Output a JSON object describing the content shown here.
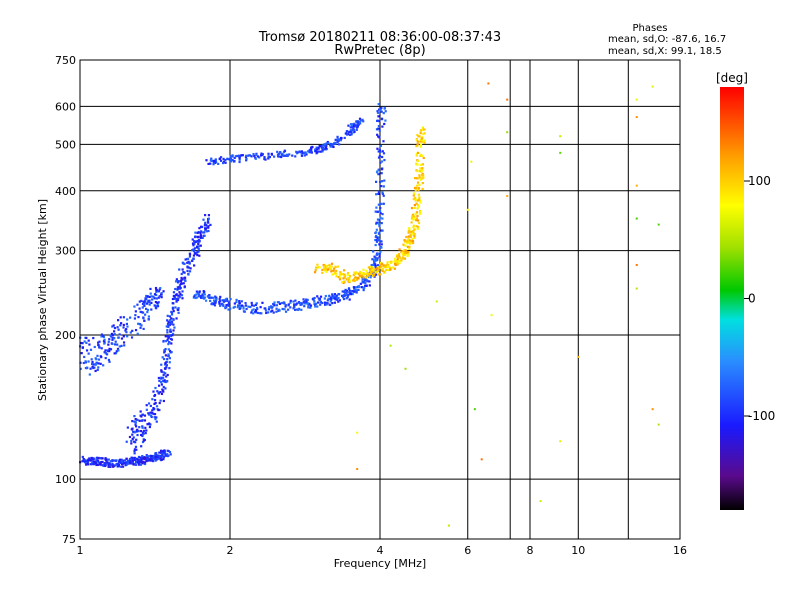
{
  "chart_data": {
    "type": "scatter",
    "title": "Tromsø 20180211 08:36:00-08:37:43",
    "subtitle": "RwPretec (8p)",
    "xlabel": "Frequency [MHz]",
    "ylabel": "Stationary phase Virtual Height [km]",
    "x_scale": "log",
    "y_scale": "log",
    "xlim": [
      1,
      16
    ],
    "ylim": [
      75,
      750
    ],
    "x_ticks": [
      1,
      2,
      4,
      6,
      8,
      10,
      16
    ],
    "x_tick_labels": [
      "1",
      "2",
      "4",
      "6",
      "8",
      "10",
      "16"
    ],
    "x_grid": [
      2,
      4,
      6,
      7.3,
      8,
      10,
      12.6
    ],
    "y_ticks": [
      75,
      100,
      200,
      300,
      400,
      500,
      600,
      750
    ],
    "y_tick_labels": [
      "75",
      "100",
      "200",
      "300",
      "400",
      "500",
      "600",
      "750"
    ],
    "y_grid": [
      100,
      200,
      300,
      400,
      500,
      600
    ],
    "grid": true,
    "phases_box": {
      "heading": "Phases",
      "line_o": "mean, sd,O: -87.6, 16.7",
      "line_x": "mean, sd,X:  99.1, 18.5"
    },
    "colorbar": {
      "label": "[deg]",
      "range": [
        -180,
        180
      ],
      "ticks": [
        100,
        0,
        -100
      ],
      "tick_labels": [
        "100",
        "0",
        "-100"
      ]
    },
    "series": [
      {
        "trace": "E-layer",
        "phase_deg": -100,
        "spread_km": 2,
        "points": [
          [
            1.0,
            110
          ],
          [
            1.05,
            109
          ],
          [
            1.1,
            109
          ],
          [
            1.15,
            108
          ],
          [
            1.2,
            108
          ],
          [
            1.25,
            109
          ],
          [
            1.3,
            109
          ],
          [
            1.35,
            110
          ],
          [
            1.4,
            111
          ],
          [
            1.45,
            112
          ],
          [
            1.5,
            114
          ]
        ]
      },
      {
        "trace": "O-lower-cusp",
        "phase_deg": -95,
        "spread_km": 10,
        "points": [
          [
            1.25,
            120
          ],
          [
            1.3,
            125
          ],
          [
            1.35,
            130
          ],
          [
            1.4,
            140
          ],
          [
            1.45,
            150
          ],
          [
            1.48,
            170
          ],
          [
            1.5,
            190
          ],
          [
            1.52,
            210
          ],
          [
            1.55,
            230
          ],
          [
            1.58,
            250
          ],
          [
            1.62,
            270
          ],
          [
            1.68,
            290
          ],
          [
            1.72,
            310
          ],
          [
            1.76,
            330
          ],
          [
            1.8,
            350
          ]
        ]
      },
      {
        "trace": "O-low-scatter",
        "phase_deg": -90,
        "spread_km": 15,
        "points": [
          [
            1.0,
            185
          ],
          [
            1.05,
            180
          ],
          [
            1.1,
            185
          ],
          [
            1.15,
            190
          ],
          [
            1.2,
            200
          ],
          [
            1.3,
            215
          ],
          [
            1.35,
            225
          ],
          [
            1.4,
            235
          ],
          [
            1.45,
            245
          ]
        ]
      },
      {
        "trace": "O-F-main",
        "phase_deg": -85,
        "spread_km": 6,
        "points": [
          [
            1.7,
            245
          ],
          [
            1.8,
            240
          ],
          [
            1.9,
            235
          ],
          [
            2.0,
            232
          ],
          [
            2.2,
            228
          ],
          [
            2.4,
            228
          ],
          [
            2.6,
            230
          ],
          [
            2.8,
            232
          ],
          [
            3.0,
            235
          ],
          [
            3.2,
            238
          ],
          [
            3.4,
            242
          ],
          [
            3.6,
            250
          ],
          [
            3.8,
            262
          ],
          [
            3.9,
            275
          ],
          [
            3.95,
            295
          ],
          [
            3.98,
            330
          ],
          [
            4.0,
            400
          ],
          [
            4.02,
            520
          ],
          [
            4.03,
            610
          ]
        ]
      },
      {
        "trace": "O-F-upper",
        "phase_deg": -90,
        "spread_km": 8,
        "points": [
          [
            1.8,
            460
          ],
          [
            2.0,
            465
          ],
          [
            2.2,
            470
          ],
          [
            2.5,
            475
          ],
          [
            2.8,
            480
          ],
          [
            3.0,
            488
          ],
          [
            3.2,
            500
          ],
          [
            3.4,
            520
          ],
          [
            3.55,
            545
          ],
          [
            3.65,
            560
          ]
        ]
      },
      {
        "trace": "X-F-main",
        "phase_deg": 100,
        "spread_km": 6,
        "points": [
          [
            3.0,
            275
          ],
          [
            3.2,
            278
          ],
          [
            3.4,
            262
          ],
          [
            3.6,
            265
          ],
          [
            3.8,
            270
          ],
          [
            4.0,
            275
          ],
          [
            4.2,
            280
          ],
          [
            4.4,
            290
          ],
          [
            4.5,
            300
          ],
          [
            4.6,
            320
          ],
          [
            4.7,
            345
          ],
          [
            4.75,
            380
          ],
          [
            4.8,
            430
          ],
          [
            4.82,
            500
          ],
          [
            4.84,
            540
          ]
        ]
      },
      {
        "trace": "sparse",
        "phase_deg": 80,
        "spread_km": 0,
        "points": [
          [
            6.2,
            140
          ],
          [
            6.6,
            670
          ],
          [
            7.2,
            620
          ],
          [
            7.2,
            530
          ],
          [
            7.2,
            390
          ],
          [
            8.4,
            90
          ],
          [
            9.2,
            520
          ],
          [
            9.2,
            480
          ],
          [
            9.2,
            120
          ],
          [
            10.0,
            180
          ],
          [
            13.1,
            620
          ],
          [
            13.1,
            570
          ],
          [
            13.1,
            410
          ],
          [
            13.1,
            350
          ],
          [
            13.1,
            280
          ],
          [
            13.1,
            250
          ],
          [
            14.1,
            660
          ],
          [
            14.1,
            140
          ],
          [
            14.5,
            130
          ],
          [
            14.5,
            340
          ],
          [
            6.4,
            110
          ],
          [
            6.1,
            460
          ],
          [
            6.0,
            365
          ],
          [
            6.7,
            220
          ],
          [
            5.5,
            80
          ],
          [
            5.2,
            235
          ],
          [
            4.2,
            190
          ],
          [
            4.5,
            170
          ],
          [
            3.6,
            105
          ],
          [
            3.6,
            125
          ]
        ]
      }
    ]
  }
}
